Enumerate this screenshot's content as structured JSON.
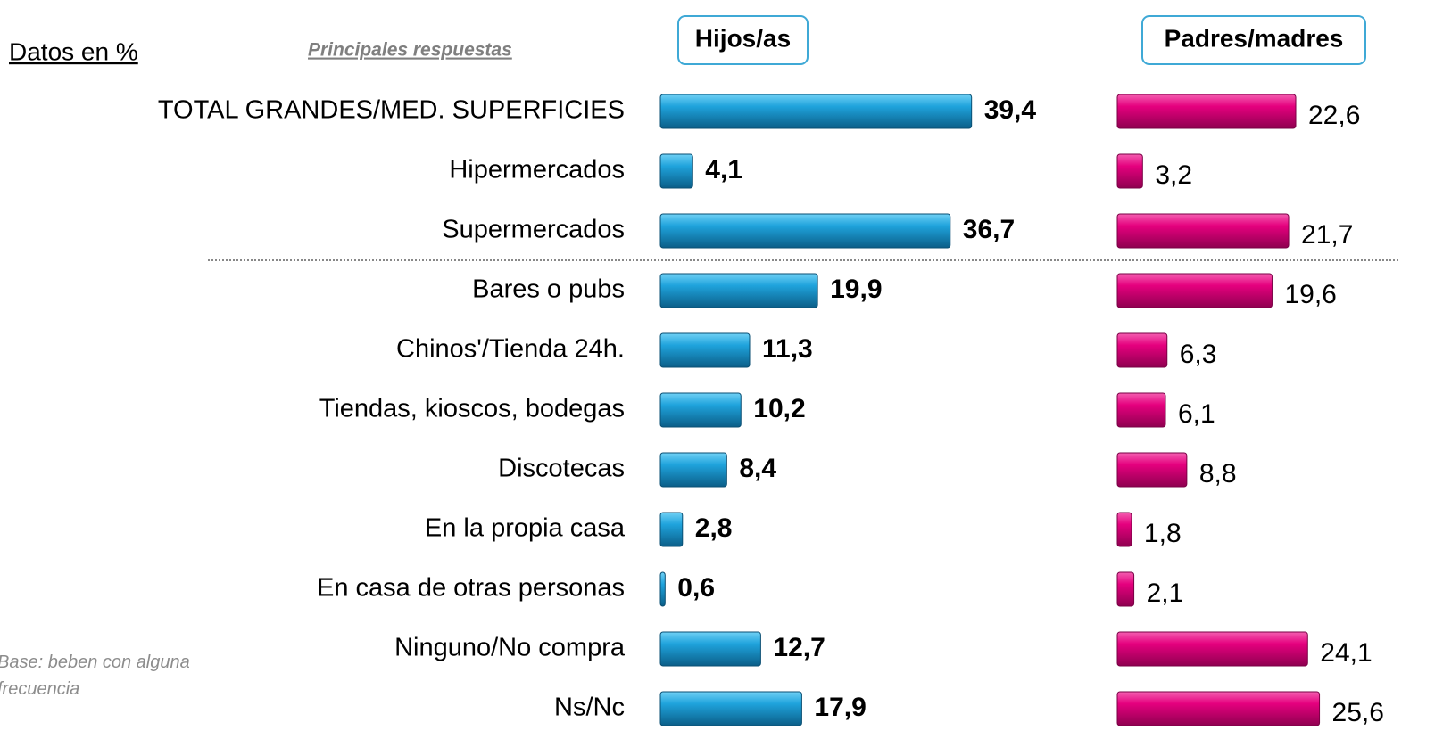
{
  "chart_data": {
    "type": "bar",
    "orientation": "horizontal",
    "subtitle": "Datos en %",
    "annotation": "Principales respuestas",
    "note": "Base: beben con alguna frecuencia",
    "categories": [
      "TOTAL GRANDES/MED. SUPERFICIES",
      "Hipermercados",
      "Supermercados",
      "Bares o pubs",
      "Chinos'/Tienda 24h.",
      "Tiendas, kioscos, bodegas",
      "Discotecas",
      "En la propia casa",
      "En casa de otras personas",
      "Ninguno/No compra",
      "Ns/Nc"
    ],
    "series": [
      {
        "name": "Hijos/as",
        "color": "#1fa3dc",
        "values": [
          39.4,
          4.1,
          36.7,
          19.9,
          11.3,
          10.2,
          8.4,
          2.8,
          0.6,
          12.7,
          17.9
        ],
        "value_labels": [
          "39,4",
          "4,1",
          "36,7",
          "19,9",
          "11,3",
          "10,2",
          "8,4",
          "2,8",
          "0,6",
          "12,7",
          "17,9"
        ]
      },
      {
        "name": "Padres/madres",
        "color": "#e5007e",
        "values": [
          22.6,
          3.2,
          21.7,
          19.6,
          6.3,
          6.1,
          8.8,
          1.8,
          2.1,
          24.1,
          25.6
        ],
        "value_labels": [
          "22,6",
          "3,2",
          "21,7",
          "19,6",
          "6,3",
          "6,1",
          "8,8",
          "1,8",
          "2,1",
          "24,1",
          "25,6"
        ]
      }
    ]
  }
}
